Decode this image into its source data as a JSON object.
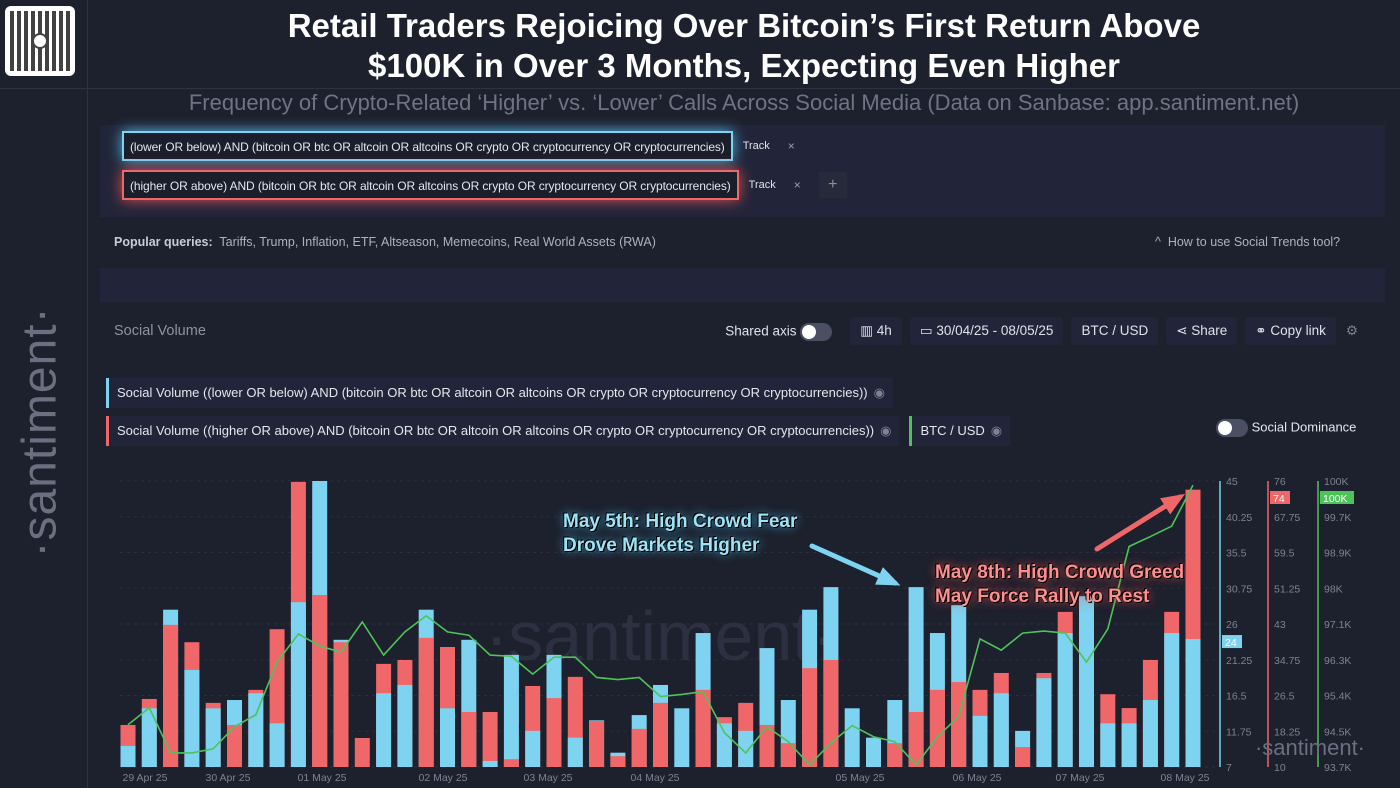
{
  "header": {
    "title_line1": "Retail Traders Rejoicing Over Bitcoin’s First Return Above",
    "title_line2": "$100K in Over 3 Months, Expecting Even Higher",
    "subtitle": "Frequency of Crypto-Related ‘Higher’ vs. ‘Lower’ Calls Across Social Media (Data on Sanbase: app.santiment.net)",
    "logo_text": "·santiment·"
  },
  "queries": [
    {
      "text": "(lower OR below) AND (bitcoin OR btc OR altcoin OR altcoins OR crypto OR cryptocurrency OR cryptocurrencies)",
      "track": "Track",
      "remove": "×"
    },
    {
      "text": "(higher OR above) AND (bitcoin OR btc OR altcoin OR altcoins OR crypto OR cryptocurrency OR cryptocurrencies)",
      "track": "Track",
      "remove": "×"
    }
  ],
  "add_label": "+",
  "popular": {
    "label": "Popular queries:",
    "items": "Tariffs, Trump, Inflation, ETF, Altseason, Memecoins, Real World Assets (RWA)"
  },
  "howto": "How to use Social Trends tool?",
  "controls": {
    "section": "Social Volume",
    "shared_axis": "Shared axis",
    "interval": "4h",
    "date_range": "30/04/25 - 08/05/25",
    "pair": "BTC / USD",
    "share": "Share",
    "copy_link": "Copy link",
    "social_dominance": "Social Dominance"
  },
  "legend": [
    {
      "label": "Social Volume ((lower OR below) AND (bitcoin OR btc OR altcoin OR altcoins OR crypto OR cryptocurrency OR cryptocurrencies))",
      "color": "#7dd3f0"
    },
    {
      "label": "Social Volume ((higher OR above) AND (bitcoin OR btc OR altcoin OR altcoins OR crypto OR cryptocurrency OR cryptocurrencies))",
      "color": "#f0676a"
    },
    {
      "label": "BTC / USD",
      "color": "#4fc35a"
    }
  ],
  "annotations": {
    "fear_line1": "May 5th: High Crowd Fear",
    "fear_line2": "Drove Markets Higher",
    "greed_line1": "May 8th: High Crowd Greed",
    "greed_line2": "May Force Rally to Rest"
  },
  "watermark": "·santiment·",
  "chart_data": {
    "type": "bar",
    "interval": "4h",
    "x_tick_labels": [
      "29 Apr 25",
      "30 Apr 25",
      "01 May 25",
      "02 May 25",
      "03 May 25",
      "04 May 25",
      "05 May 25",
      "06 May 25",
      "07 May 25",
      "08 May 25"
    ],
    "series": [
      {
        "name": "Social Volume ((lower OR below) AND (bitcoin OR btc OR altcoin OR altcoins OR crypto OR cryptocurrency OR cryptocurrencies))",
        "type": "bar",
        "color": "#7dd3f0",
        "axis": "left",
        "ylim": [
          7,
          45
        ],
        "ticks": [
          "45",
          "40.25",
          "35.5",
          "30.75",
          "26",
          "21.25",
          "16.5",
          "11.75",
          "7"
        ],
        "last_value_badge": "24",
        "values": [
          9.8,
          14.8,
          27.9,
          19.9,
          14.8,
          15.9,
          16.8,
          12.8,
          28.9,
          45,
          23.9,
          7,
          16.8,
          17.9,
          27.9,
          14.8,
          23.9,
          7.8,
          21.9,
          11.8,
          21.9,
          10.9,
          13.2,
          8.9,
          13.9,
          17.9,
          14.8,
          24.8,
          12.8,
          11.8,
          22.8,
          15.9,
          27.9,
          30.9,
          14.8,
          10.9,
          15.9,
          30.9,
          24.8,
          28.5,
          13.8,
          16.8,
          11.8,
          18.8,
          24.8,
          29.7,
          12.8,
          12.8,
          15.9,
          24.8,
          24
        ]
      },
      {
        "name": "Social Volume ((higher OR above) AND (bitcoin OR btc OR altcoin OR altcoins OR crypto OR cryptocurrency OR cryptocurrencies))",
        "type": "bar",
        "color": "#f0676a",
        "axis": "right-1",
        "ylim": [
          10,
          76
        ],
        "ticks": [
          "76",
          "67.75",
          "59.5",
          "51.25",
          "43",
          "34.75",
          "26.5",
          "18.25",
          "10"
        ],
        "last_value_badge": "74",
        "values": [
          19.7,
          25.7,
          42.8,
          38.8,
          24.8,
          19.7,
          27.8,
          41.8,
          75.8,
          49.7,
          38.8,
          16.7,
          33.8,
          34.7,
          39.8,
          37.7,
          22.7,
          22.7,
          11.8,
          28.7,
          25.9,
          30.8,
          20.6,
          12.5,
          18.8,
          24.8,
          10,
          27.8,
          21.5,
          24.8,
          19.7,
          15.5,
          32.8,
          34.7,
          10,
          10,
          15.5,
          22.7,
          27.8,
          29.6,
          27.8,
          31.7,
          14.6,
          31.7,
          45.8,
          10,
          26.8,
          23.6,
          34.7,
          45.8,
          74
        ]
      },
      {
        "name": "BTC / USD",
        "type": "line",
        "color": "#4fc35a",
        "axis": "right-2",
        "ylim": [
          93.7,
          100.6
        ],
        "unit": "K",
        "ticks": [
          "100K",
          "99.7K",
          "98.9K",
          "98K",
          "97.1K",
          "96.3K",
          "95.4K",
          "94.5K",
          "93.7K"
        ],
        "last_value_badge": "100K",
        "values": [
          94.72,
          95.13,
          94.04,
          94.04,
          94.14,
          94.67,
          94.96,
          96.23,
          96.91,
          96.62,
          96.47,
          97.2,
          96.4,
          96.96,
          97.35,
          96.96,
          96.88,
          96.4,
          96.37,
          95.94,
          96.35,
          96.35,
          95.86,
          95.81,
          95.86,
          95.4,
          95.45,
          95.52,
          94.53,
          94.04,
          94.67,
          94.31,
          93.75,
          94.28,
          94.7,
          94.43,
          94.31,
          93.75,
          94.43,
          94.92,
          96.79,
          96.52,
          96.93,
          96.98,
          96.93,
          96.23,
          97.03,
          99.02,
          99.26,
          99.51,
          100.5
        ]
      }
    ],
    "grid": true
  }
}
